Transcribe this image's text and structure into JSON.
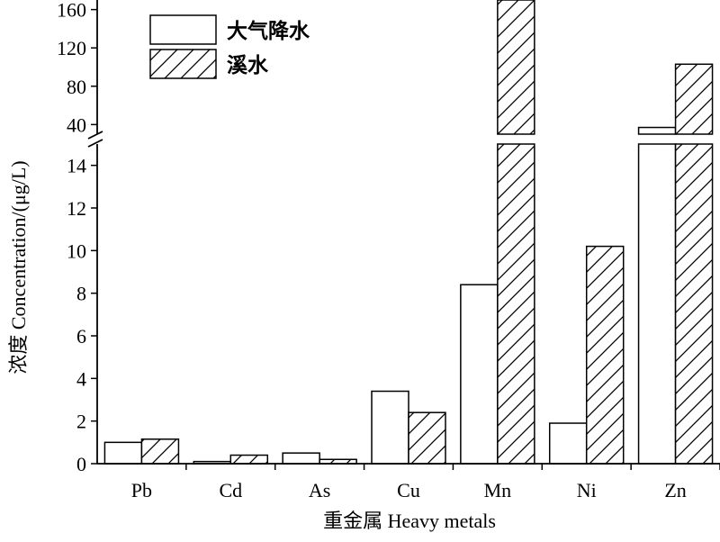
{
  "chart_data": {
    "type": "bar",
    "xlabel": "重金属 Heavy metals",
    "ylabel": "浓度 Concentration/(μg/L)",
    "categories": [
      "Pb",
      "Cd",
      "As",
      "Cu",
      "Mn",
      "Ni",
      "Zn"
    ],
    "series": [
      {
        "name": "大气降水",
        "values": [
          1.0,
          0.1,
          0.5,
          3.4,
          8.4,
          1.9,
          37
        ],
        "fill": "#ffffff",
        "pattern": "none"
      },
      {
        "name": "溪水",
        "values": [
          1.15,
          0.4,
          0.2,
          2.4,
          174,
          10.2,
          103
        ],
        "fill": "#ffffff",
        "pattern": "diagonal-hatch"
      }
    ],
    "y_axis_break": {
      "lower_range": [
        0,
        15
      ],
      "upper_range": [
        30,
        170
      ]
    },
    "lower_ticks": [
      0,
      2,
      4,
      6,
      8,
      10,
      12,
      14
    ],
    "upper_ticks": [
      40,
      80,
      120,
      160
    ],
    "legend_position": "top-left",
    "grid": false,
    "colors": {
      "axis": "#000000",
      "bar_stroke": "#000000",
      "bar_fill": "#ffffff",
      "hatch": "#000000"
    }
  }
}
